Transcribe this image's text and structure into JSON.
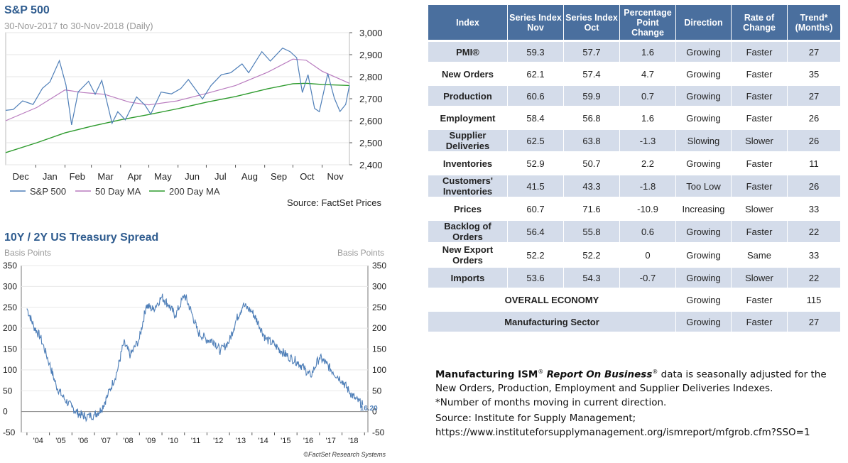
{
  "sp500": {
    "title": "S&P 500",
    "subtitle": "30-Nov-2017 to 30-Nov-2018 (Daily)",
    "source": "Source: FactSet Prices",
    "legend": [
      "S&P 500",
      "50 Day MA",
      "200 Day MA"
    ],
    "colors": {
      "price": "#4f7fb8",
      "ma50": "#b97cbf",
      "ma200": "#2e9b2e"
    }
  },
  "treasury": {
    "title": "10Y / 2Y US Treasury Spread",
    "left_unit": "Basis Points",
    "right_unit": "Basis Points",
    "last_value_label": "16.20",
    "credit": "©FactSet Research Systems",
    "color": "#4f7fb8"
  },
  "chart_data": [
    {
      "type": "line",
      "title": "S&P 500",
      "subtitle": "30-Nov-2017 to 30-Nov-2018 (Daily)",
      "x_tick_labels": [
        "Dec",
        "Jan",
        "Feb",
        "Mar",
        "Apr",
        "May",
        "Jun",
        "Jul",
        "Aug",
        "Sep",
        "Oct",
        "Nov"
      ],
      "ylim": [
        2400,
        3000
      ],
      "y_ticks": [
        2400,
        2500,
        2600,
        2700,
        2800,
        2900,
        3000
      ],
      "y_tick_labels": [
        "2,400",
        "2,500",
        "2,600",
        "2,700",
        "2,800",
        "2,900",
        "3,000"
      ],
      "legend_position": "bottom",
      "grid": true,
      "series": [
        {
          "name": "S&P 500",
          "x": [
            "2017-11-30",
            "2017-12-08",
            "2017-12-18",
            "2017-12-29",
            "2018-01-08",
            "2018-01-16",
            "2018-01-26",
            "2018-02-02",
            "2018-02-08",
            "2018-02-15",
            "2018-02-26",
            "2018-03-05",
            "2018-03-12",
            "2018-03-23",
            "2018-03-29",
            "2018-04-06",
            "2018-04-18",
            "2018-04-27",
            "2018-05-03",
            "2018-05-14",
            "2018-05-25",
            "2018-06-04",
            "2018-06-12",
            "2018-06-27",
            "2018-07-06",
            "2018-07-17",
            "2018-07-27",
            "2018-08-08",
            "2018-08-15",
            "2018-08-29",
            "2018-09-07",
            "2018-09-20",
            "2018-09-28",
            "2018-10-05",
            "2018-10-11",
            "2018-10-17",
            "2018-10-24",
            "2018-10-29",
            "2018-11-07",
            "2018-11-14",
            "2018-11-20",
            "2018-11-26",
            "2018-11-30"
          ],
          "values": [
            2647,
            2651,
            2690,
            2674,
            2747,
            2776,
            2873,
            2762,
            2581,
            2731,
            2779,
            2720,
            2783,
            2588,
            2641,
            2604,
            2708,
            2670,
            2630,
            2730,
            2722,
            2746,
            2787,
            2699,
            2760,
            2809,
            2818,
            2858,
            2818,
            2914,
            2871,
            2930,
            2914,
            2886,
            2728,
            2809,
            2656,
            2641,
            2814,
            2702,
            2642,
            2674,
            2760
          ]
        },
        {
          "name": "50 Day MA",
          "x": [
            "2017-11-30",
            "2018-01-02",
            "2018-02-01",
            "2018-02-20",
            "2018-03-15",
            "2018-04-10",
            "2018-05-01",
            "2018-05-31",
            "2018-07-02",
            "2018-08-01",
            "2018-09-04",
            "2018-10-01",
            "2018-10-15",
            "2018-11-01",
            "2018-11-30"
          ],
          "values": [
            2600,
            2660,
            2740,
            2728,
            2720,
            2685,
            2672,
            2690,
            2725,
            2760,
            2820,
            2880,
            2875,
            2825,
            2770
          ]
        },
        {
          "name": "200 Day MA",
          "x": [
            "2017-11-30",
            "2018-01-02",
            "2018-02-01",
            "2018-03-01",
            "2018-04-02",
            "2018-05-01",
            "2018-06-01",
            "2018-07-02",
            "2018-08-01",
            "2018-09-04",
            "2018-10-01",
            "2018-10-15",
            "2018-11-01",
            "2018-11-30"
          ],
          "values": [
            2455,
            2500,
            2545,
            2575,
            2605,
            2628,
            2655,
            2685,
            2710,
            2745,
            2768,
            2770,
            2765,
            2760
          ]
        }
      ]
    },
    {
      "type": "line",
      "title": "10Y / 2Y US Treasury Spread",
      "ylabel": "Basis Points",
      "ylim": [
        -50,
        350
      ],
      "y_ticks": [
        -50,
        0,
        50,
        100,
        150,
        200,
        250,
        300,
        350
      ],
      "x_tick_labels": [
        "'04",
        "'05",
        "'06",
        "'07",
        "'08",
        "'09",
        "'10",
        "'11",
        "'12",
        "'13",
        "'14",
        "'15",
        "'16",
        "'17",
        "'18"
      ],
      "annotation": "16.20",
      "grid": true,
      "series": [
        {
          "name": "10Y / 2Y US Treasury Spread",
          "x": [
            2004.0,
            2004.3,
            2004.6,
            2005.0,
            2005.3,
            2005.6,
            2006.0,
            2006.3,
            2006.6,
            2007.0,
            2007.3,
            2007.6,
            2008.0,
            2008.3,
            2008.6,
            2009.0,
            2009.3,
            2009.6,
            2010.0,
            2010.3,
            2010.6,
            2011.0,
            2011.3,
            2011.6,
            2012.0,
            2012.3,
            2012.6,
            2013.0,
            2013.3,
            2013.6,
            2014.0,
            2014.3,
            2014.6,
            2015.0,
            2015.3,
            2015.6,
            2016.0,
            2016.3,
            2016.6,
            2017.0,
            2017.3,
            2017.6,
            2018.0,
            2018.3,
            2018.6,
            2018.92
          ],
          "values": [
            247,
            205,
            178,
            115,
            62,
            35,
            10,
            -5,
            -12,
            -8,
            5,
            40,
            95,
            165,
            135,
            175,
            255,
            245,
            275,
            255,
            230,
            280,
            240,
            190,
            172,
            170,
            145,
            170,
            220,
            255,
            240,
            210,
            175,
            160,
            145,
            132,
            120,
            105,
            85,
            130,
            115,
            95,
            75,
            50,
            30,
            16.2
          ]
        }
      ]
    }
  ],
  "ism_table": {
    "headers": [
      "Index",
      "Series Index Nov",
      "Series Index Oct",
      "Percentage Point Change",
      "Direction",
      "Rate of Change",
      "Trend* (Months)"
    ],
    "rows": [
      [
        "PMI®",
        "59.3",
        "57.7",
        "1.6",
        "Growing",
        "Faster",
        "27"
      ],
      [
        "New Orders",
        "62.1",
        "57.4",
        "4.7",
        "Growing",
        "Faster",
        "35"
      ],
      [
        "Production",
        "60.6",
        "59.9",
        "0.7",
        "Growing",
        "Faster",
        "27"
      ],
      [
        "Employment",
        "58.4",
        "56.8",
        "1.6",
        "Growing",
        "Faster",
        "26"
      ],
      [
        "Supplier Deliveries",
        "62.5",
        "63.8",
        "-1.3",
        "Slowing",
        "Slower",
        "26"
      ],
      [
        "Inventories",
        "52.9",
        "50.7",
        "2.2",
        "Growing",
        "Faster",
        "11"
      ],
      [
        "Customers' Inventories",
        "41.5",
        "43.3",
        "-1.8",
        "Too Low",
        "Faster",
        "26"
      ],
      [
        "Prices",
        "60.7",
        "71.6",
        "-10.9",
        "Increasing",
        "Slower",
        "33"
      ],
      [
        "Backlog of Orders",
        "56.4",
        "55.8",
        "0.6",
        "Growing",
        "Faster",
        "22"
      ],
      [
        "New Export Orders",
        "52.2",
        "52.2",
        "0",
        "Growing",
        "Same",
        "33"
      ],
      [
        "Imports",
        "53.6",
        "54.3",
        "-0.7",
        "Growing",
        "Slower",
        "22"
      ]
    ],
    "summary_rows": [
      [
        "OVERALL ECONOMY",
        "Growing",
        "Faster",
        "115"
      ],
      [
        "Manufacturing Sector",
        "Growing",
        "Faster",
        "27"
      ]
    ],
    "note_brand": "Manufacturing ISM",
    "note_reg": "®",
    "note_report": "Report On Business",
    "note_text": " data is seasonally adjusted for the New Orders, Production, Employment and Supplier Deliveries Indexes.",
    "note_trend": "*Number of months moving in current direction.",
    "source_line1": "Source: Institute for Supply Management;",
    "source_line2": "https://www.instituteforsupplymanagement.org/ismreport/mfgrob.cfm?SSO=1"
  }
}
